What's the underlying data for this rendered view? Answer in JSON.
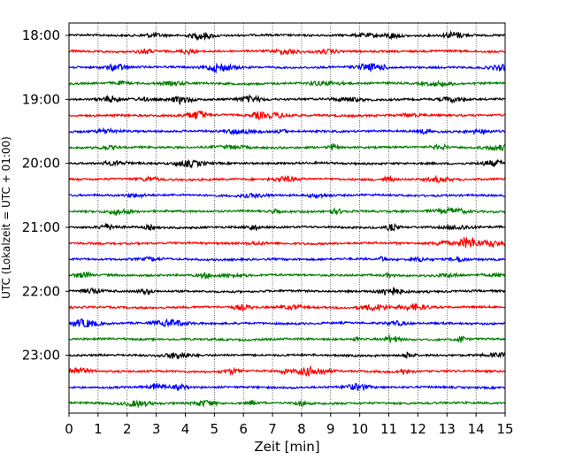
{
  "chart_data": {
    "type": "line",
    "title": "",
    "xlabel": "Zeit  [min]",
    "ylabel": "UTC (Lokalzeit = UTC + 01:00)",
    "xlim": [
      0,
      15
    ],
    "x_ticks": [
      0,
      1,
      2,
      3,
      4,
      5,
      6,
      7,
      8,
      9,
      10,
      11,
      12,
      13,
      14,
      15
    ],
    "x_grid": true,
    "y_ticks": [
      "18:00",
      "19:00",
      "20:00",
      "21:00",
      "22:00",
      "23:00"
    ],
    "trace_interval_minutes": 15,
    "first_trace": "18:00",
    "trace_count": 24,
    "trace_colors": [
      "#000000",
      "#ff0000",
      "#0000ff",
      "#007f00"
    ]
  }
}
